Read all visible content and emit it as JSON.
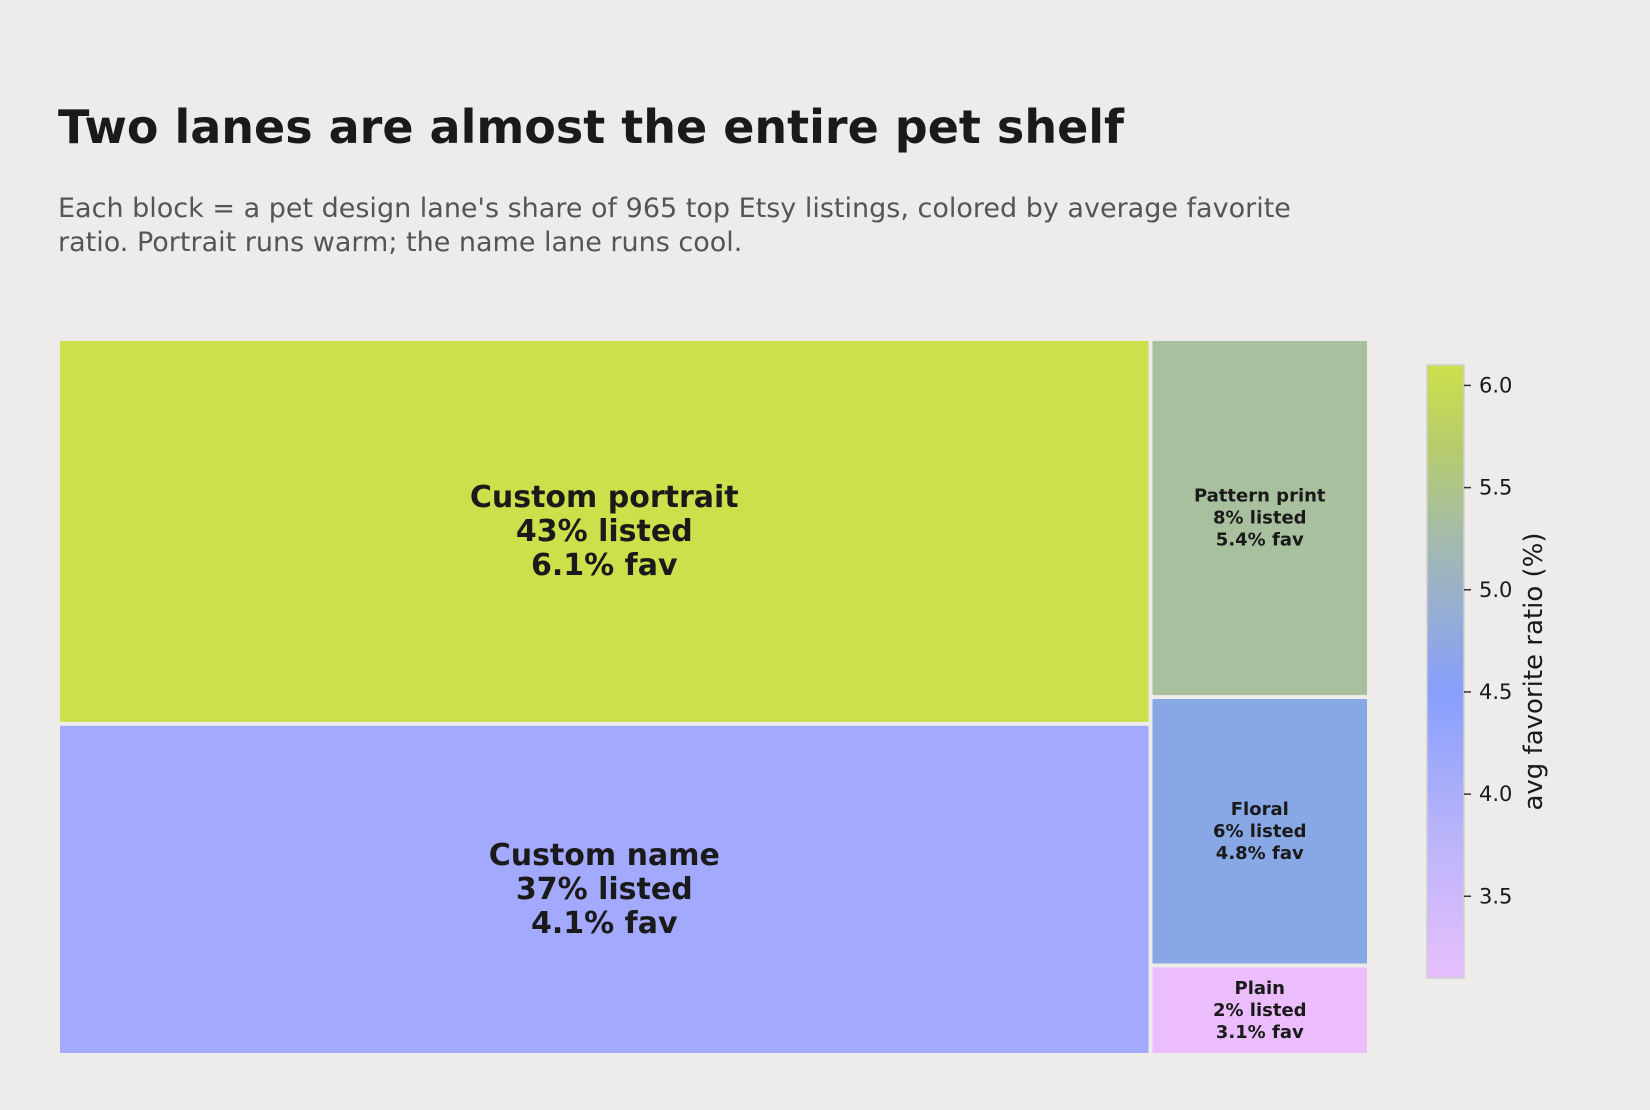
{
  "chart_data": {
    "type": "treemap",
    "title": "Two lanes are almost the entire pet shelf",
    "subtitle": "Each block = a pet design lane's share of 965 top Etsy listings, colored by average favorite ratio. Portrait runs warm; the name lane runs cool.",
    "total_listings": 965,
    "tiles": [
      {
        "name": "Custom portrait",
        "share_pct": 43,
        "fav_pct": 6.1,
        "listed_label": "43% listed",
        "fav_label": "6.1% fav",
        "color": "#cde04b"
      },
      {
        "name": "Custom name",
        "share_pct": 37,
        "fav_pct": 4.1,
        "listed_label": "37% listed",
        "fav_label": "4.1% fav",
        "color": "#a3a9fc"
      },
      {
        "name": "Pattern print",
        "share_pct": 8,
        "fav_pct": 5.4,
        "listed_label": "8% listed",
        "fav_label": "5.4% fav",
        "color": "#a9c09f"
      },
      {
        "name": "Floral",
        "share_pct": 6,
        "fav_pct": 4.8,
        "listed_label": "6% listed",
        "fav_label": "4.8% fav",
        "color": "#87a8e4"
      },
      {
        "name": "Plain",
        "share_pct": 2,
        "fav_pct": 3.1,
        "listed_label": "2% listed",
        "fav_label": "3.1% fav",
        "color": "#ebbdfc"
      }
    ],
    "colorbar": {
      "label": "avg favorite ratio (%)",
      "range": [
        3.1,
        6.1
      ],
      "ticks": [
        3.5,
        4.0,
        4.5,
        5.0,
        5.5,
        6.0
      ],
      "tick_labels": [
        "3.5",
        "4.0",
        "4.5",
        "5.0",
        "5.5",
        "6.0"
      ],
      "stops": [
        {
          "value": 3.1,
          "color": "#e6bffd"
        },
        {
          "value": 3.8,
          "color": "#b9b4fa"
        },
        {
          "value": 4.5,
          "color": "#879ffc"
        },
        {
          "value": 5.2,
          "color": "#a2b9b3"
        },
        {
          "value": 5.7,
          "color": "#b6cc6c"
        },
        {
          "value": 6.1,
          "color": "#cde04b"
        }
      ]
    }
  }
}
